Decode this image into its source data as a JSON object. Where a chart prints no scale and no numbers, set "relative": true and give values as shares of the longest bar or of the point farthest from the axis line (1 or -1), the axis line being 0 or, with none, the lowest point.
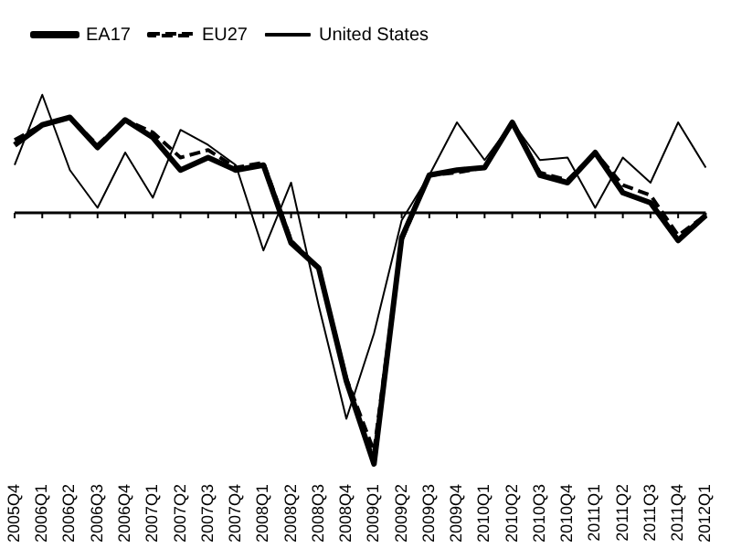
{
  "chart_data": {
    "type": "line",
    "relative": true,
    "legend": "top",
    "marker": "none",
    "grid": false,
    "categories": [
      "2005Q4",
      "2006Q1",
      "2006Q2",
      "2006Q3",
      "2006Q4",
      "2007Q1",
      "2007Q2",
      "2007Q3",
      "2007Q4",
      "2008Q1",
      "2008Q2",
      "2008Q3",
      "2008Q4",
      "2009Q1",
      "2009Q2",
      "2009Q3",
      "2009Q4",
      "2010Q1",
      "2010Q2",
      "2010Q3",
      "2010Q4",
      "2011Q1",
      "2011Q2",
      "2011Q3",
      "2011Q4",
      "2012Q1"
    ],
    "series": [
      {
        "name": "EA17",
        "color": "#000000",
        "line_style": "solid",
        "values": [
          0.27,
          0.35,
          0.38,
          0.26,
          0.37,
          0.3,
          0.17,
          0.22,
          0.17,
          0.19,
          -0.12,
          -0.22,
          -0.67,
          -1,
          -0.1,
          0.15,
          0.17,
          0.18,
          0.36,
          0.15,
          0.12,
          0.24,
          0.08,
          0.04,
          -0.11,
          -0.01
        ]
      },
      {
        "name": "EU27",
        "color": "#000000",
        "line_style": "dashed",
        "values": [
          0.29,
          0.35,
          0.38,
          0.27,
          0.37,
          0.32,
          0.22,
          0.25,
          0.18,
          0.2,
          -0.11,
          -0.22,
          -0.66,
          -0.95,
          -0.11,
          0.15,
          0.16,
          0.18,
          0.36,
          0.16,
          0.13,
          0.24,
          0.11,
          0.07,
          -0.09,
          -0.01
        ]
      },
      {
        "name": "United States",
        "color": "#000000",
        "line_style": "solid",
        "values": [
          0.19,
          0.47,
          0.17,
          0.02,
          0.24,
          0.06,
          0.33,
          0.27,
          0.19,
          -0.15,
          0.12,
          -0.37,
          -0.82,
          -0.48,
          -0.03,
          0.15,
          0.36,
          0.21,
          0.36,
          0.21,
          0.22,
          0.02,
          0.22,
          0.12,
          0.36,
          0.18
        ]
      }
    ]
  }
}
